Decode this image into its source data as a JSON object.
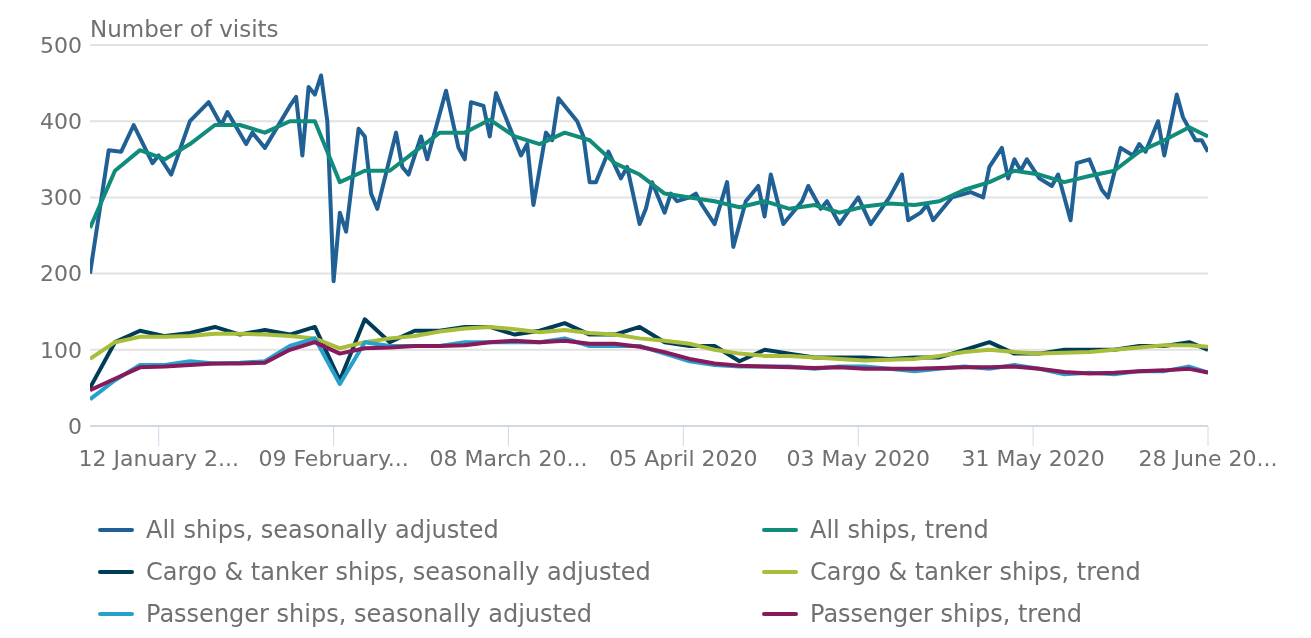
{
  "chart_data": {
    "type": "line",
    "ylabel": "Number of visits",
    "x": [
      "2020-01-01",
      "2020-01-05",
      "2020-01-09",
      "2020-01-13",
      "2020-01-17",
      "2020-01-21",
      "2020-01-25",
      "2020-01-29",
      "2020-02-02",
      "2020-02-06",
      "2020-02-10",
      "2020-02-14",
      "2020-02-18",
      "2020-02-22",
      "2020-02-26",
      "2020-03-01",
      "2020-03-05",
      "2020-03-09",
      "2020-03-13",
      "2020-03-17",
      "2020-03-21",
      "2020-03-25",
      "2020-03-29",
      "2020-04-02",
      "2020-04-06",
      "2020-04-10",
      "2020-04-14",
      "2020-04-18",
      "2020-04-22",
      "2020-04-26",
      "2020-04-30",
      "2020-05-04",
      "2020-05-08",
      "2020-05-12",
      "2020-05-16",
      "2020-05-20",
      "2020-05-24",
      "2020-05-28",
      "2020-06-01",
      "2020-06-05",
      "2020-06-09",
      "2020-06-13",
      "2020-06-17",
      "2020-06-21",
      "2020-06-25",
      "2020-06-28"
    ],
    "series": [
      {
        "name": "All ships, seasonally adjusted",
        "color": "#206095",
        "x": [
          "2020-01-01",
          "2020-01-04",
          "2020-01-06",
          "2020-01-08",
          "2020-01-11",
          "2020-01-12",
          "2020-01-14",
          "2020-01-17",
          "2020-01-20",
          "2020-01-22",
          "2020-01-23",
          "2020-01-26",
          "2020-01-27",
          "2020-01-29",
          "2020-02-02",
          "2020-02-03",
          "2020-02-04",
          "2020-02-05",
          "2020-02-06",
          "2020-02-07",
          "2020-02-08",
          "2020-02-09",
          "2020-02-10",
          "2020-02-11",
          "2020-02-13",
          "2020-02-14",
          "2020-02-15",
          "2020-02-16",
          "2020-02-19",
          "2020-02-20",
          "2020-02-21",
          "2020-02-23",
          "2020-02-24",
          "2020-02-27",
          "2020-02-29",
          "2020-03-01",
          "2020-03-02",
          "2020-03-04",
          "2020-03-05",
          "2020-03-06",
          "2020-03-10",
          "2020-03-11",
          "2020-03-12",
          "2020-03-14",
          "2020-03-15",
          "2020-03-16",
          "2020-03-19",
          "2020-03-20",
          "2020-03-21",
          "2020-03-22",
          "2020-03-24",
          "2020-03-26",
          "2020-03-27",
          "2020-03-29",
          "2020-03-30",
          "2020-03-31",
          "2020-04-02",
          "2020-04-03",
          "2020-04-04",
          "2020-04-06",
          "2020-04-07",
          "2020-04-08",
          "2020-04-10",
          "2020-04-12",
          "2020-04-13",
          "2020-04-15",
          "2020-04-17",
          "2020-04-18",
          "2020-04-19",
          "2020-04-21",
          "2020-04-24",
          "2020-04-25",
          "2020-04-27",
          "2020-04-28",
          "2020-04-30",
          "2020-05-03",
          "2020-05-05",
          "2020-05-08",
          "2020-05-10",
          "2020-05-11",
          "2020-05-13",
          "2020-05-14",
          "2020-05-15",
          "2020-05-18",
          "2020-05-21",
          "2020-05-23",
          "2020-05-24",
          "2020-05-26",
          "2020-05-27",
          "2020-05-28",
          "2020-05-29",
          "2020-05-30",
          "2020-06-01",
          "2020-06-03",
          "2020-06-04",
          "2020-06-06",
          "2020-06-07",
          "2020-06-09",
          "2020-06-11",
          "2020-06-12",
          "2020-06-14",
          "2020-06-16",
          "2020-06-17",
          "2020-06-18",
          "2020-06-20",
          "2020-06-21",
          "2020-06-23",
          "2020-06-24",
          "2020-06-26",
          "2020-06-27",
          "2020-06-28"
        ],
        "values": [
          200,
          362,
          360,
          395,
          345,
          355,
          330,
          400,
          425,
          395,
          412,
          370,
          385,
          365,
          420,
          432,
          355,
          445,
          435,
          460,
          400,
          190,
          280,
          255,
          390,
          380,
          305,
          285,
          385,
          340,
          330,
          380,
          350,
          440,
          365,
          350,
          425,
          420,
          380,
          437,
          355,
          370,
          290,
          385,
          375,
          430,
          400,
          380,
          320,
          320,
          360,
          325,
          340,
          265,
          285,
          320,
          280,
          305,
          295,
          300,
          305,
          290,
          265,
          320,
          235,
          295,
          315,
          275,
          330,
          265,
          295,
          315,
          285,
          295,
          265,
          300,
          265,
          300,
          330,
          270,
          280,
          290,
          270,
          300,
          307,
          300,
          340,
          365,
          325,
          350,
          335,
          350,
          325,
          315,
          330,
          270,
          345,
          350,
          310,
          300,
          365,
          355,
          370,
          360,
          400,
          355,
          435,
          405,
          375,
          375,
          360
        ]
      },
      {
        "name": "All ships, trend",
        "color": "#118c7b",
        "values": [
          260,
          335,
          362,
          350,
          370,
          395,
          395,
          385,
          400,
          400,
          320,
          335,
          335,
          360,
          385,
          385,
          402,
          380,
          370,
          385,
          375,
          345,
          330,
          305,
          300,
          295,
          287,
          295,
          285,
          290,
          280,
          288,
          292,
          290,
          295,
          310,
          320,
          335,
          330,
          320,
          328,
          335,
          360,
          375,
          392,
          380
        ]
      },
      {
        "name": "Cargo & tanker ships, seasonally adjusted",
        "color": "#003c57",
        "values": [
          50,
          110,
          125,
          118,
          122,
          130,
          120,
          126,
          120,
          130,
          60,
          140,
          110,
          125,
          125,
          130,
          130,
          120,
          125,
          135,
          120,
          120,
          130,
          110,
          105,
          105,
          85,
          100,
          95,
          90,
          90,
          90,
          88,
          90,
          90,
          100,
          110,
          95,
          95,
          100,
          100,
          100,
          105,
          105,
          110,
          100
        ]
      },
      {
        "name": "Cargo & tanker ships, trend",
        "color": "#a8bd3a",
        "values": [
          88,
          110,
          117,
          117,
          118,
          121,
          121,
          120,
          118,
          115,
          102,
          110,
          115,
          118,
          124,
          128,
          130,
          127,
          123,
          126,
          122,
          120,
          115,
          112,
          108,
          100,
          95,
          92,
          92,
          90,
          88,
          86,
          87,
          88,
          92,
          97,
          100,
          97,
          95,
          96,
          97,
          100,
          103,
          106,
          106,
          104
        ]
      },
      {
        "name": "Passenger ships, seasonally adjusted",
        "color": "#27a0cc",
        "values": [
          35,
          60,
          80,
          80,
          85,
          82,
          83,
          85,
          105,
          115,
          55,
          110,
          105,
          105,
          105,
          110,
          110,
          110,
          110,
          115,
          105,
          105,
          105,
          95,
          85,
          80,
          78,
          78,
          78,
          75,
          78,
          78,
          75,
          72,
          75,
          78,
          75,
          80,
          75,
          68,
          70,
          68,
          72,
          72,
          78,
          70
        ]
      },
      {
        "name": "Passenger ships, trend",
        "color": "#871a5b",
        "values": [
          47,
          62,
          77,
          78,
          80,
          82,
          82,
          83,
          100,
          110,
          95,
          102,
          103,
          105,
          105,
          106,
          110,
          112,
          110,
          112,
          108,
          108,
          104,
          97,
          88,
          82,
          79,
          78,
          77,
          76,
          77,
          75,
          75,
          75,
          76,
          77,
          77,
          78,
          75,
          71,
          69,
          70,
          72,
          73,
          75,
          70
        ]
      }
    ],
    "xlim": [
      "2020-01-01",
      "2020-06-28"
    ],
    "xticks": [
      {
        "value": "2020-01-12",
        "label": "12 January 2..."
      },
      {
        "value": "2020-02-09",
        "label": "09 February..."
      },
      {
        "value": "2020-03-08",
        "label": "08 March 20..."
      },
      {
        "value": "2020-04-05",
        "label": "05 April 2020"
      },
      {
        "value": "2020-05-03",
        "label": "03 May 2020"
      },
      {
        "value": "2020-05-31",
        "label": "31 May 2020"
      },
      {
        "value": "2020-06-28",
        "label": "28 June 20..."
      }
    ],
    "ylim": [
      0,
      500
    ],
    "yticks": [
      0,
      100,
      200,
      300,
      400,
      500
    ],
    "grid": "y",
    "legend": "bottom"
  }
}
